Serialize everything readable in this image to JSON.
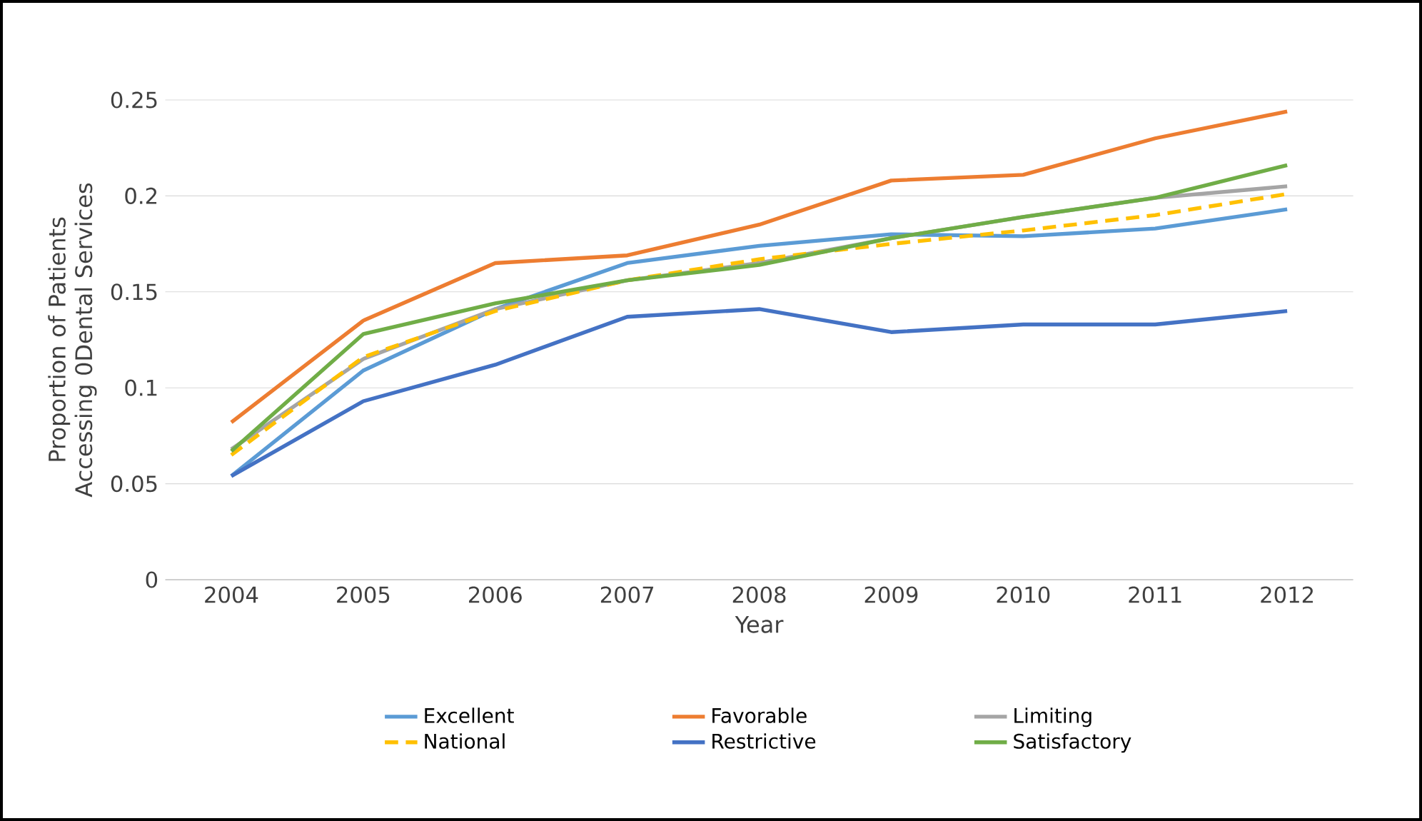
{
  "chart_data": {
    "type": "line",
    "xlabel": "Year",
    "ylabel": "Proportion of Patients Accessing 0Dental Services",
    "categories": [
      "2004",
      "2005",
      "2006",
      "2007",
      "2008",
      "2009",
      "2010",
      "2011",
      "2012"
    ],
    "ylim": [
      0,
      0.25
    ],
    "yticks": [
      0,
      0.05,
      0.1,
      0.15,
      0.2,
      0.25
    ],
    "grid": "y",
    "legend": "bottom",
    "marker": "none",
    "series": [
      {
        "name": "Excellent",
        "color": "#5b9bd5",
        "values": [
          0.054,
          0.109,
          0.141,
          0.165,
          0.174,
          0.18,
          0.179,
          0.183,
          0.193
        ]
      },
      {
        "name": "Favorable",
        "color": "#ed7d31",
        "values": [
          0.082,
          0.135,
          0.165,
          0.169,
          0.185,
          0.208,
          0.211,
          0.23,
          0.244
        ]
      },
      {
        "name": "Limiting",
        "color": "#a5a5a5",
        "values": [
          0.068,
          0.115,
          0.141,
          0.156,
          0.165,
          0.178,
          0.189,
          0.199,
          0.205
        ]
      },
      {
        "name": "National",
        "color": "#ffc000",
        "line_style": "dashed",
        "values": [
          0.065,
          0.116,
          0.14,
          0.156,
          0.167,
          0.175,
          0.182,
          0.19,
          0.201
        ]
      },
      {
        "name": "Restrictive",
        "color": "#4472c4",
        "values": [
          0.054,
          0.093,
          0.112,
          0.137,
          0.141,
          0.129,
          0.133,
          0.133,
          0.14
        ]
      },
      {
        "name": "Satisfactory",
        "color": "#70ad47",
        "values": [
          0.067,
          0.128,
          0.144,
          0.156,
          0.164,
          0.178,
          0.189,
          0.199,
          0.216
        ]
      }
    ]
  }
}
